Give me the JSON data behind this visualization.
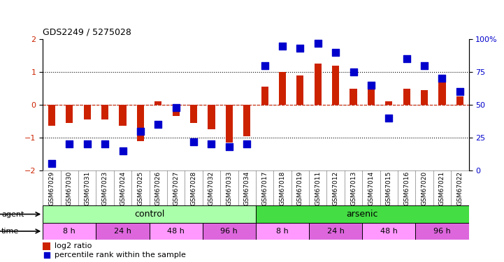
{
  "title": "GDS2249 / 5275028",
  "samples": [
    "GSM67029",
    "GSM67030",
    "GSM67031",
    "GSM67023",
    "GSM67024",
    "GSM67025",
    "GSM67026",
    "GSM67027",
    "GSM67028",
    "GSM67032",
    "GSM67033",
    "GSM67034",
    "GSM67017",
    "GSM67018",
    "GSM67019",
    "GSM67011",
    "GSM67012",
    "GSM67013",
    "GSM67014",
    "GSM67015",
    "GSM67016",
    "GSM67020",
    "GSM67021",
    "GSM67022"
  ],
  "log2ratio": [
    -0.65,
    -0.55,
    -0.45,
    -0.45,
    -0.65,
    -1.1,
    0.1,
    -0.35,
    -0.55,
    -0.75,
    -1.15,
    -0.95,
    0.55,
    1.0,
    0.9,
    1.25,
    1.2,
    0.5,
    0.5,
    0.1,
    0.5,
    0.45,
    0.85,
    0.25
  ],
  "percentile": [
    5,
    20,
    20,
    20,
    15,
    30,
    35,
    48,
    22,
    20,
    18,
    20,
    80,
    95,
    93,
    97,
    90,
    75,
    65,
    40,
    85,
    80,
    70,
    60
  ],
  "agent_groups": [
    {
      "label": "control",
      "start": 0,
      "end": 12,
      "color": "#aaffaa"
    },
    {
      "label": "arsenic",
      "start": 12,
      "end": 24,
      "color": "#44dd44"
    }
  ],
  "time_groups": [
    {
      "label": "8 h",
      "start": 0,
      "end": 3,
      "color": "#ff99ff"
    },
    {
      "label": "24 h",
      "start": 3,
      "end": 6,
      "color": "#dd66dd"
    },
    {
      "label": "48 h",
      "start": 6,
      "end": 9,
      "color": "#ff99ff"
    },
    {
      "label": "96 h",
      "start": 9,
      "end": 12,
      "color": "#dd66dd"
    },
    {
      "label": "8 h",
      "start": 12,
      "end": 15,
      "color": "#ff99ff"
    },
    {
      "label": "24 h",
      "start": 15,
      "end": 18,
      "color": "#dd66dd"
    },
    {
      "label": "48 h",
      "start": 18,
      "end": 21,
      "color": "#ff99ff"
    },
    {
      "label": "96 h",
      "start": 21,
      "end": 24,
      "color": "#dd66dd"
    }
  ],
  "bar_color": "#cc2200",
  "dot_color": "#0000cc",
  "ylim_left": [
    -2,
    2
  ],
  "ylim_right": [
    0,
    100
  ],
  "yticks_left": [
    -2,
    -1,
    0,
    1,
    2
  ],
  "yticks_right": [
    0,
    25,
    50,
    75,
    100
  ],
  "ytick_labels_right": [
    "0",
    "25",
    "50",
    "75",
    "100%"
  ],
  "hlines": [
    -1,
    0,
    1
  ],
  "bar_width": 0.4,
  "dot_size": 55
}
